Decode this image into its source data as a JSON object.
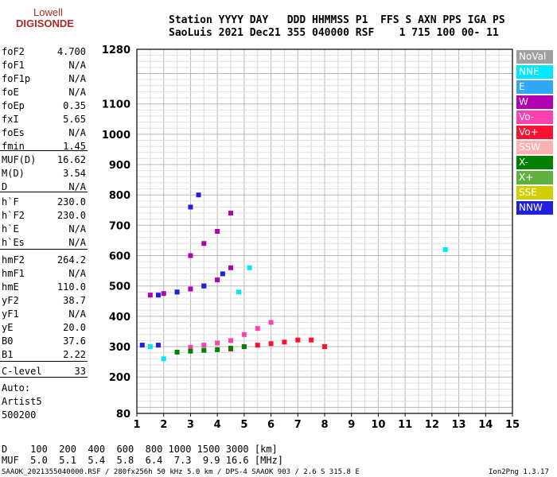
{
  "logo": {
    "line1": "Lowell",
    "line2": "DIGISONDE"
  },
  "header": {
    "row1": "Station YYYY DAY   DDD HHMMSS P1  FFS S AXN PPS IGA PS",
    "row2": "SaoLuis 2021 Dec21 355 040000 RSF    1 715 100 00- 11"
  },
  "params": [
    {
      "key": "foF2",
      "value": "4.700"
    },
    {
      "key": "foF1",
      "value": "N/A"
    },
    {
      "key": "foF1p",
      "value": "N/A"
    },
    {
      "key": "foE",
      "value": "N/A"
    },
    {
      "key": "foEp",
      "value": "0.35"
    },
    {
      "key": "fxI",
      "value": "5.65"
    },
    {
      "key": "foEs",
      "value": "N/A"
    },
    {
      "key": "fmin",
      "value": "1.45"
    },
    {
      "key": "MUF(D)",
      "value": "16.62"
    },
    {
      "key": "M(D)",
      "value": "3.54"
    },
    {
      "key": "D",
      "value": "N/A"
    },
    {
      "key": "h`F",
      "value": "230.0"
    },
    {
      "key": "h`F2",
      "value": "230.0"
    },
    {
      "key": "h`E",
      "value": "N/A"
    },
    {
      "key": "h`Es",
      "value": "N/A"
    },
    {
      "key": "hmF2",
      "value": "264.2"
    },
    {
      "key": "hmF1",
      "value": "N/A"
    },
    {
      "key": "hmE",
      "value": "110.0"
    },
    {
      "key": "yF2",
      "value": "38.7"
    },
    {
      "key": "yF1",
      "value": "N/A"
    },
    {
      "key": "yE",
      "value": "20.0"
    },
    {
      "key": "B0",
      "value": "37.6"
    },
    {
      "key": "B1",
      "value": "2.22"
    },
    {
      "key": "C-level",
      "value": "33"
    }
  ],
  "autoscaling": {
    "line1": "Auto:",
    "line2": "Artist5",
    "line3": "500200"
  },
  "legend": [
    {
      "label": "NoVal",
      "color": "#a0a0a0"
    },
    {
      "label": "NNE",
      "color": "#00e8ff"
    },
    {
      "label": "E",
      "color": "#30a8f8"
    },
    {
      "label": "W",
      "color": "#b000b0"
    },
    {
      "label": "Vo-",
      "color": "#ff40b0"
    },
    {
      "label": "Vo+",
      "color": "#ff1030"
    },
    {
      "label": "SSW",
      "color": "#ffb0b0"
    },
    {
      "label": "X-",
      "color": "#008000"
    },
    {
      "label": "X+",
      "color": "#60b040"
    },
    {
      "label": "SSE",
      "color": "#d0d000"
    },
    {
      "label": "NNW",
      "color": "#2020e0"
    }
  ],
  "muf_table": {
    "d_row": "D    100  200  400  600  800 1000 1500 3000 [km]",
    "muf_row": "MUF  5.0  5.1  5.4  5.8  6.4  7.3  9.9 16.6 [MHz]"
  },
  "footer": {
    "left": "SAAOK_2021355040000.RSF / 280fx256h 50 kHz 5.0 km / DPS-4 SAAOK 903 / 2.6 S 315.8 E",
    "right": "Ion2Png 1.3.17"
  },
  "chart_data": {
    "type": "scatter",
    "title": "",
    "xlabel": "",
    "ylabel": "",
    "x_ticks": [
      "1",
      "2",
      "3",
      "4",
      "5",
      "6",
      "7",
      "8",
      "9",
      "10",
      "11",
      "12",
      "13",
      "14",
      "15"
    ],
    "y_ticks": [
      "80",
      "200",
      "300",
      "400",
      "500",
      "600",
      "700",
      "800",
      "900",
      "1000",
      "1100",
      "1280"
    ],
    "xlim": [
      1,
      15
    ],
    "ylim": [
      80,
      1280
    ],
    "grid": true,
    "series": [
      {
        "name": "Vo+",
        "color": "#ff1030",
        "x": [
          4.5,
          5.0,
          5.5,
          6.0,
          6.5,
          7.0,
          7.5,
          8.0
        ],
        "y": [
          292,
          300,
          305,
          310,
          315,
          322,
          322,
          300
        ]
      },
      {
        "name": "Vo-",
        "color": "#ff40b0",
        "x": [
          3.0,
          3.5,
          4.0,
          4.5,
          5.0,
          5.5,
          6.0
        ],
        "y": [
          298,
          305,
          312,
          320,
          340,
          360,
          380
        ]
      },
      {
        "name": "X-",
        "color": "#008000",
        "x": [
          2.5,
          3.0,
          3.5,
          4.0,
          4.5,
          5.0
        ],
        "y": [
          282,
          285,
          288,
          290,
          295,
          300
        ]
      },
      {
        "name": "NNE",
        "color": "#00e8ff",
        "x": [
          1.5,
          2.0,
          4.8,
          5.2,
          12.5
        ],
        "y": [
          300,
          260,
          480,
          560,
          620
        ]
      },
      {
        "name": "W",
        "color": "#b000b0",
        "x": [
          1.5,
          2.0,
          2.5,
          3.0,
          3.5,
          4.0,
          4.5,
          3.0,
          3.5,
          4.0,
          4.5
        ],
        "y": [
          470,
          475,
          480,
          490,
          500,
          520,
          560,
          600,
          640,
          680,
          740
        ]
      },
      {
        "name": "NNW",
        "color": "#2020e0",
        "x": [
          1.8,
          2.5,
          3.5,
          4.2,
          1.2,
          1.8,
          3.0,
          3.3
        ],
        "y": [
          470,
          480,
          500,
          540,
          305,
          305,
          760,
          800
        ]
      }
    ]
  }
}
